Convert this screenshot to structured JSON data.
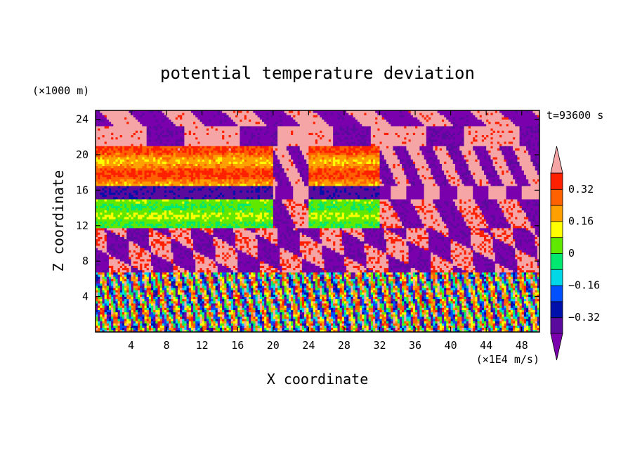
{
  "chart_data": {
    "type": "heatmap",
    "title": "potential temperature deviation",
    "xlabel": "X coordinate",
    "ylabel": "Z coordinate",
    "x_unit": "(×1E4 m/s)",
    "y_unit": "(×1000 m)",
    "time_label": "t=93600 s",
    "xlim": [
      0,
      50
    ],
    "ylim": [
      0,
      25
    ],
    "x_ticks": [
      4,
      8,
      12,
      16,
      20,
      24,
      28,
      32,
      36,
      40,
      44,
      48
    ],
    "y_ticks": [
      4,
      8,
      12,
      16,
      20,
      24
    ],
    "grid": false,
    "colorbar": {
      "placement": "right",
      "levels": [
        -0.4,
        -0.32,
        -0.24,
        -0.16,
        -0.08,
        0,
        0.08,
        0.16,
        0.24,
        0.32,
        0.4
      ],
      "tick_labels": [
        "0.32",
        "0.16",
        "0",
        "−0.16",
        "−0.32"
      ],
      "tick_values": [
        0.32,
        0.16,
        0,
        -0.16,
        -0.32
      ],
      "colors": [
        "#7a00ad",
        "#5a0a9c",
        "#0010aa",
        "#0050ff",
        "#00d8e8",
        "#00e870",
        "#60e800",
        "#ffff00",
        "#ffa000",
        "#ff6000",
        "#ff2000",
        "#f5a5a5"
      ],
      "under_color": "#7a00ad",
      "over_color": "#f5a5a5"
    },
    "bands": [
      {
        "z": [
          20.8,
          24.8
        ],
        "description_color": "#f5a5a5"
      }
    ]
  }
}
